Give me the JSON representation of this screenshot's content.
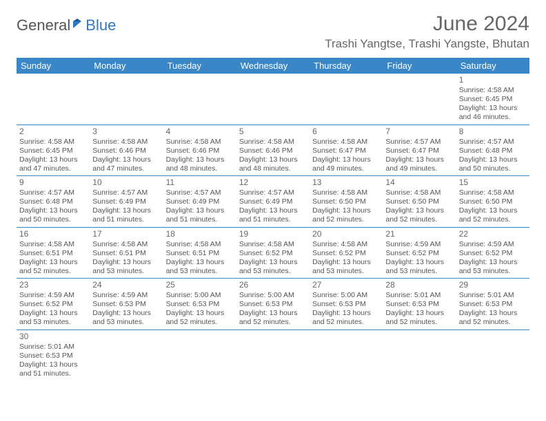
{
  "logo": {
    "dark": "General",
    "blue": "Blue"
  },
  "title": "June 2024",
  "location": "Trashi Yangtse, Trashi Yangste, Bhutan",
  "colors": {
    "header_bg": "#3a87c8",
    "header_text": "#ffffff",
    "rule": "#3a87c8",
    "text": "#555555",
    "title_text": "#666666",
    "background": "#ffffff"
  },
  "weekdays": [
    "Sunday",
    "Monday",
    "Tuesday",
    "Wednesday",
    "Thursday",
    "Friday",
    "Saturday"
  ],
  "weeks": [
    [
      {
        "blank": true
      },
      {
        "blank": true
      },
      {
        "blank": true
      },
      {
        "blank": true
      },
      {
        "blank": true
      },
      {
        "blank": true
      },
      {
        "day": "1",
        "sunrise": "4:58 AM",
        "sunset": "6:45 PM",
        "daylight": "13 hours and 46 minutes."
      }
    ],
    [
      {
        "day": "2",
        "sunrise": "4:58 AM",
        "sunset": "6:45 PM",
        "daylight": "13 hours and 47 minutes."
      },
      {
        "day": "3",
        "sunrise": "4:58 AM",
        "sunset": "6:46 PM",
        "daylight": "13 hours and 47 minutes."
      },
      {
        "day": "4",
        "sunrise": "4:58 AM",
        "sunset": "6:46 PM",
        "daylight": "13 hours and 48 minutes."
      },
      {
        "day": "5",
        "sunrise": "4:58 AM",
        "sunset": "6:46 PM",
        "daylight": "13 hours and 48 minutes."
      },
      {
        "day": "6",
        "sunrise": "4:58 AM",
        "sunset": "6:47 PM",
        "daylight": "13 hours and 49 minutes."
      },
      {
        "day": "7",
        "sunrise": "4:57 AM",
        "sunset": "6:47 PM",
        "daylight": "13 hours and 49 minutes."
      },
      {
        "day": "8",
        "sunrise": "4:57 AM",
        "sunset": "6:48 PM",
        "daylight": "13 hours and 50 minutes."
      }
    ],
    [
      {
        "day": "9",
        "sunrise": "4:57 AM",
        "sunset": "6:48 PM",
        "daylight": "13 hours and 50 minutes."
      },
      {
        "day": "10",
        "sunrise": "4:57 AM",
        "sunset": "6:49 PM",
        "daylight": "13 hours and 51 minutes."
      },
      {
        "day": "11",
        "sunrise": "4:57 AM",
        "sunset": "6:49 PM",
        "daylight": "13 hours and 51 minutes."
      },
      {
        "day": "12",
        "sunrise": "4:57 AM",
        "sunset": "6:49 PM",
        "daylight": "13 hours and 51 minutes."
      },
      {
        "day": "13",
        "sunrise": "4:58 AM",
        "sunset": "6:50 PM",
        "daylight": "13 hours and 52 minutes."
      },
      {
        "day": "14",
        "sunrise": "4:58 AM",
        "sunset": "6:50 PM",
        "daylight": "13 hours and 52 minutes."
      },
      {
        "day": "15",
        "sunrise": "4:58 AM",
        "sunset": "6:50 PM",
        "daylight": "13 hours and 52 minutes."
      }
    ],
    [
      {
        "day": "16",
        "sunrise": "4:58 AM",
        "sunset": "6:51 PM",
        "daylight": "13 hours and 52 minutes."
      },
      {
        "day": "17",
        "sunrise": "4:58 AM",
        "sunset": "6:51 PM",
        "daylight": "13 hours and 53 minutes."
      },
      {
        "day": "18",
        "sunrise": "4:58 AM",
        "sunset": "6:51 PM",
        "daylight": "13 hours and 53 minutes."
      },
      {
        "day": "19",
        "sunrise": "4:58 AM",
        "sunset": "6:52 PM",
        "daylight": "13 hours and 53 minutes."
      },
      {
        "day": "20",
        "sunrise": "4:58 AM",
        "sunset": "6:52 PM",
        "daylight": "13 hours and 53 minutes."
      },
      {
        "day": "21",
        "sunrise": "4:59 AM",
        "sunset": "6:52 PM",
        "daylight": "13 hours and 53 minutes."
      },
      {
        "day": "22",
        "sunrise": "4:59 AM",
        "sunset": "6:52 PM",
        "daylight": "13 hours and 53 minutes."
      }
    ],
    [
      {
        "day": "23",
        "sunrise": "4:59 AM",
        "sunset": "6:52 PM",
        "daylight": "13 hours and 53 minutes."
      },
      {
        "day": "24",
        "sunrise": "4:59 AM",
        "sunset": "6:53 PM",
        "daylight": "13 hours and 53 minutes."
      },
      {
        "day": "25",
        "sunrise": "5:00 AM",
        "sunset": "6:53 PM",
        "daylight": "13 hours and 52 minutes."
      },
      {
        "day": "26",
        "sunrise": "5:00 AM",
        "sunset": "6:53 PM",
        "daylight": "13 hours and 52 minutes."
      },
      {
        "day": "27",
        "sunrise": "5:00 AM",
        "sunset": "6:53 PM",
        "daylight": "13 hours and 52 minutes."
      },
      {
        "day": "28",
        "sunrise": "5:01 AM",
        "sunset": "6:53 PM",
        "daylight": "13 hours and 52 minutes."
      },
      {
        "day": "29",
        "sunrise": "5:01 AM",
        "sunset": "6:53 PM",
        "daylight": "13 hours and 52 minutes."
      }
    ],
    [
      {
        "day": "30",
        "sunrise": "5:01 AM",
        "sunset": "6:53 PM",
        "daylight": "13 hours and 51 minutes."
      },
      {
        "blank": true
      },
      {
        "blank": true
      },
      {
        "blank": true
      },
      {
        "blank": true
      },
      {
        "blank": true
      },
      {
        "blank": true
      }
    ]
  ]
}
